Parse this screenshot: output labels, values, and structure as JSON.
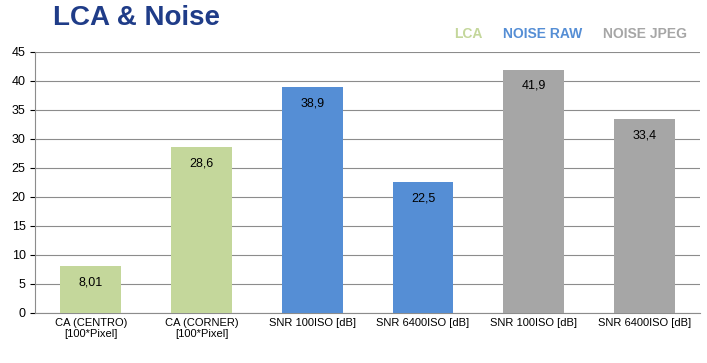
{
  "chart_data": {
    "type": "bar",
    "title": "LCA & Noise",
    "categories": [
      "CA (CENTRO)\n[100*Pixel]",
      "CA (CORNER)\n[100*Pixel]",
      "SNR 100ISO [dB]",
      "SNR 6400ISO [dB]",
      "SNR 100ISO [dB]",
      "SNR 6400ISO [dB]"
    ],
    "series": [
      {
        "name": "LCA",
        "color": "#c4d79b",
        "values": [
          8.01,
          28.6,
          null,
          null,
          null,
          null
        ],
        "value_labels": [
          "8,01",
          "28,6",
          null,
          null,
          null,
          null
        ]
      },
      {
        "name": "NOISE RAW",
        "color": "#558ed5",
        "values": [
          null,
          null,
          38.9,
          22.5,
          null,
          null
        ],
        "value_labels": [
          null,
          null,
          "38,9",
          "22,5",
          null,
          null
        ]
      },
      {
        "name": "NOISE JPEG",
        "color": "#a6a6a6",
        "values": [
          null,
          null,
          null,
          null,
          41.9,
          33.4
        ],
        "value_labels": [
          null,
          null,
          null,
          null,
          "41,9",
          "33,4"
        ]
      }
    ],
    "ylim": [
      0,
      45
    ],
    "yticks": [
      0,
      5,
      10,
      15,
      20,
      25,
      30,
      35,
      40,
      45
    ],
    "grid": true,
    "legend": "upper right",
    "data_labels": true
  }
}
